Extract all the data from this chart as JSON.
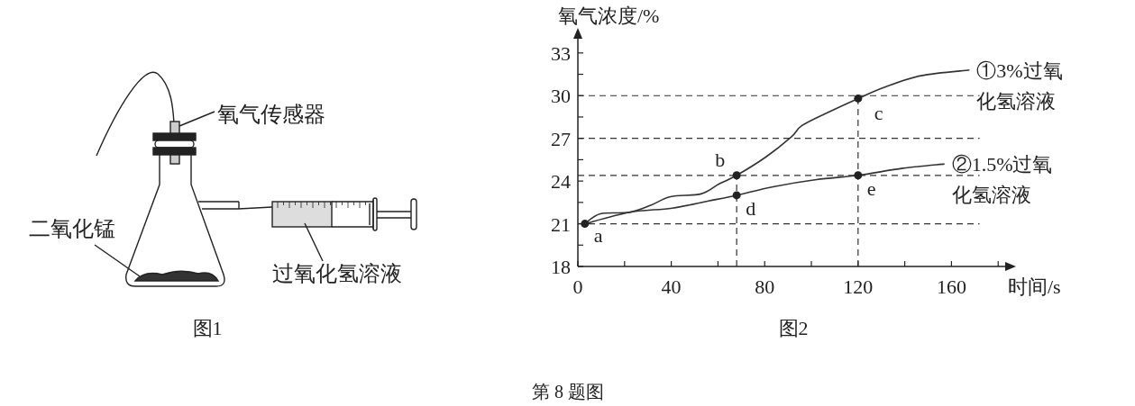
{
  "chart_data": {
    "type": "line",
    "xlabel": "时间/s",
    "ylabel": "氧气浓度/%",
    "xlim": [
      0,
      183
    ],
    "ylim": [
      18,
      34
    ],
    "xticks": [
      0,
      {
        "value": 20,
        "label": null
      },
      40,
      {
        "value": 60,
        "label": null
      },
      80,
      {
        "value": 100,
        "label": null
      },
      120,
      {
        "value": 140,
        "label": null
      },
      160,
      {
        "value": 180,
        "label": null
      }
    ],
    "yticks": [
      18,
      {
        "value": 19.5,
        "label": null
      },
      21,
      {
        "value": 22.5,
        "label": null
      },
      24,
      {
        "value": 25.5,
        "label": null
      },
      27,
      {
        "value": 28.5,
        "label": null
      },
      30,
      {
        "value": 31.5,
        "label": null
      },
      33
    ],
    "series": [
      {
        "name": "①3%过氧化氢溶液",
        "color": "#333333",
        "x": [
          3,
          9.6,
          21.9,
          31.2,
          39.7,
          52.8,
          60.5,
          68,
          80.6,
          91.4,
          96,
          106.8,
          120,
          131.5,
          146.9,
          167.7
        ],
        "values": [
          21,
          21.7,
          21.8,
          22.3,
          22.9,
          23.1,
          23.8,
          24.4,
          25.7,
          27.1,
          27.9,
          28.8,
          29.8,
          30.6,
          31.4,
          31.8
        ]
      },
      {
        "name": "②1.5%过氧化氢溶液",
        "color": "#333333",
        "x": [
          3,
          21.9,
          40.4,
          55.9,
          68,
          83.6,
          102.2,
          120,
          139.2,
          157
        ],
        "values": [
          21,
          21.8,
          22.1,
          22.6,
          23,
          23.6,
          24.1,
          24.4,
          24.9,
          25.2
        ]
      },
      {
        "type": "scatter",
        "marker": "circle",
        "color": "#222222",
        "x": [
          3,
          68,
          120,
          68,
          120
        ],
        "values": [
          21,
          24.4,
          29.8,
          23,
          24.4
        ]
      }
    ],
    "ref_lines": [
      {
        "axis": "y",
        "value": 21,
        "line_style": "dashed"
      },
      {
        "axis": "y",
        "value": 24.4,
        "line_style": "dashed"
      },
      {
        "axis": "y",
        "value": 27,
        "line_style": "dashed"
      },
      {
        "axis": "y",
        "value": 30,
        "line_style": "dashed"
      },
      {
        "axis": "x",
        "value": 68,
        "line_style": "dashed"
      },
      {
        "axis": "x",
        "value": 120,
        "line_style": "dashed"
      }
    ],
    "annotations": [
      {
        "text": "a",
        "x": 3,
        "y": 21
      },
      {
        "text": "b",
        "x": 68,
        "y": 24.4
      },
      {
        "text": "c",
        "x": 120,
        "y": 29.8
      },
      {
        "text": "d",
        "x": 68,
        "y": 23
      },
      {
        "text": "e",
        "x": 120,
        "y": 24.4
      },
      "图2",
      "图1",
      "氧气传感器",
      "二氧化锰",
      "过氧化氢溶液",
      "第 8 题图"
    ]
  }
}
